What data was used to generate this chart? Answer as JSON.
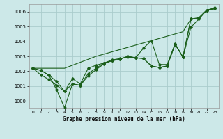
{
  "xlabel": "Graphe pression niveau de la mer (hPa)",
  "background_color": "#cce8e8",
  "grid_color": "#aacccc",
  "line_color": "#1a5e1a",
  "x_ticks": [
    0,
    1,
    2,
    3,
    4,
    5,
    6,
    7,
    8,
    9,
    10,
    11,
    12,
    13,
    14,
    15,
    16,
    17,
    18,
    19,
    20,
    21,
    22,
    23
  ],
  "ylim": [
    999.5,
    1006.5
  ],
  "xlim": [
    -0.5,
    23.5
  ],
  "yticks": [
    1000,
    1001,
    1002,
    1003,
    1004,
    1005,
    1006
  ],
  "series": [
    [
      1002.2,
      1002.05,
      1001.75,
      1000.75,
      999.55,
      1001.15,
      1001.05,
      1001.85,
      1002.2,
      1002.55,
      1002.7,
      1002.8,
      1003.0,
      1002.9,
      1002.85,
      1002.35,
      1002.25,
      1002.35,
      1003.8,
      1002.95,
      1005.5,
      1005.5,
      1006.1,
      1006.2
    ],
    [
      1002.2,
      1001.75,
      1001.45,
      1001.05,
      1000.65,
      1001.15,
      1001.05,
      1001.7,
      1002.1,
      1002.5,
      1002.7,
      1002.8,
      1003.0,
      1002.9,
      1002.85,
      1002.35,
      1002.25,
      1002.35,
      1003.8,
      1002.95,
      1004.95,
      1005.5,
      1006.1,
      1006.2
    ],
    [
      1002.2,
      1002.05,
      1001.75,
      1001.3,
      1000.65,
      1001.5,
      1001.15,
      1002.2,
      1002.4,
      1002.55,
      1002.75,
      1002.85,
      1002.95,
      1002.9,
      1003.55,
      1004.05,
      1002.45,
      1002.45,
      1003.85,
      1002.95,
      1005.5,
      1005.55,
      1006.1,
      1006.25
    ]
  ],
  "trend_line": [
    1002.2,
    1002.2,
    1002.2,
    1002.2,
    1002.2,
    1002.4,
    1002.6,
    1002.8,
    1003.0,
    1003.15,
    1003.3,
    1003.45,
    1003.6,
    1003.75,
    1003.9,
    1004.05,
    1004.2,
    1004.35,
    1004.5,
    1004.65,
    1005.5,
    1005.6,
    1006.1,
    1006.2
  ]
}
